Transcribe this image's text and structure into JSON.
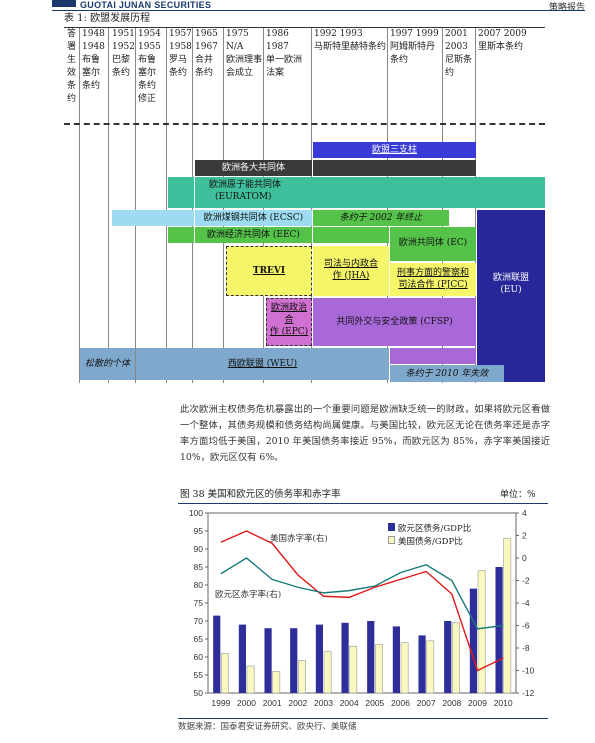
{
  "header": {
    "brand": "GUOTAI JUNAN SECURITIES",
    "report_type": "策略报告"
  },
  "table1": {
    "title": "表 1:  欧盟发展历程",
    "columns": [
      {
        "years": "答署生效条约",
        "events": ""
      },
      {
        "years": "1948 1948",
        "events": "布鲁塞尔条约"
      },
      {
        "years": "1951 1952",
        "events": "巴黎条约"
      },
      {
        "years": "1954 1955",
        "events": "布鲁塞尔条约修正"
      },
      {
        "years": "1957 1958",
        "events": "罗马条约"
      },
      {
        "years": "1965 1967",
        "events": "合并条约"
      },
      {
        "years": "1975 N/A",
        "events": "欧洲理事会成立"
      },
      {
        "years": "1986 1987",
        "events": "单一欧洲法案"
      },
      {
        "years": "1992 1993",
        "events": "马斯特里赫特条约"
      },
      {
        "years": "1997 1999",
        "events": "阿姆斯特丹条约"
      },
      {
        "years": "2001 2003",
        "events": "尼斯条约"
      },
      {
        "years": "2007 2009",
        "events": "里斯本条约"
      }
    ],
    "blocks": {
      "three_pillars": "欧盟三支柱",
      "ec_communities": "欧洲各大共同体",
      "euratom_1": "欧洲原子能共同体",
      "euratom_2": "(EURATOM)",
      "ecsc": "欧洲煤钢共同体 (ECSC)",
      "ecsc_expired": "条约于 2002 年终止",
      "eec": "欧洲经济共同体 (EEC)",
      "ec": "欧洲共同体 (EC)",
      "trevi": "TREVI",
      "jha_1": "司法与内政合",
      "jha_2": "作 (JHA)",
      "pjcc_1": "刑事方面的警察和",
      "pjcc_2": "司法合作 (PJCC)",
      "eu_1": "欧洲联盟",
      "eu_2": "(EU)",
      "epc_1": "欧洲政治",
      "epc_2": "合",
      "epc_3": "作 (EPC)",
      "cfsp": "共同外交与安全政策 (CFSP)",
      "brussels_treaty": "松散的个体",
      "weu": "西欧联盟 (WEU)",
      "weu_expired": "条约于 2010 年失效"
    },
    "colors": {
      "blue_pillar": "#3a3ad8",
      "dark": "#3a3a3a",
      "teal": "#3fbf9c",
      "cyan": "#9ddcf0",
      "green": "#55c24a",
      "yellow": "#f5f56a",
      "magenta": "#d070d0",
      "purple": "#a868d8",
      "navy": "#27279a",
      "steel": "#7fa9cc"
    }
  },
  "paragraph": "此次欧洲主权债务危机暴露出的一个重要问题是欧洲缺乏统一的财政，如果将欧元区看做一个整体，其债务规模和债务结构尚属健康。与美国比较，欧元区无论在债务率还是赤字率方面均低于美国，2010 年美国债务率接近 95%，而欧元区为 85%，赤字率美国接近 10%，欧元区仅有 6%。",
  "figure": {
    "title": "图 38  美国和欧元区的债务率和赤字率",
    "unit": "单位：%",
    "source": "数据来源：国泰君安证券研究、欧央行、美联储"
  },
  "chart_data": {
    "type": "bar",
    "categories": [
      "1999",
      "2000",
      "2001",
      "2002",
      "2003",
      "2004",
      "2005",
      "2006",
      "2007",
      "2008",
      "2009",
      "2010"
    ],
    "ylim_left": [
      50,
      100
    ],
    "yticks_left": [
      50,
      55,
      60,
      65,
      70,
      75,
      80,
      85,
      90,
      95,
      100
    ],
    "ylim_right": [
      -12,
      4
    ],
    "yticks_right": [
      -12,
      -10,
      -8,
      -6,
      -4,
      -2,
      0,
      2,
      4
    ],
    "series": [
      {
        "name": "欧元区债务/GDP比",
        "type": "bar",
        "axis": "left",
        "color": "#2e2e9a",
        "values": [
          71.5,
          69,
          68,
          68,
          69,
          69.5,
          70,
          68.5,
          66,
          70,
          79,
          85
        ]
      },
      {
        "name": "美国债务/GDP比",
        "type": "bar",
        "axis": "left",
        "color": "#f8f8c0",
        "values": [
          61,
          57.5,
          56,
          59,
          61.5,
          63,
          63.5,
          64,
          64.5,
          69.5,
          84,
          93
        ]
      },
      {
        "name": "美国赤字率(右)",
        "type": "line",
        "axis": "right",
        "color": "#e01818",
        "values": [
          1.4,
          2.4,
          1.3,
          -1.5,
          -3.4,
          -3.5,
          -2.6,
          -1.9,
          -1.2,
          -3.2,
          -10,
          -8.9
        ]
      },
      {
        "name": "欧元区赤字率(右)",
        "type": "line",
        "axis": "right",
        "color": "#1a7a7a",
        "values": [
          -1.4,
          0.0,
          -1.9,
          -2.6,
          -3.1,
          -2.9,
          -2.5,
          -1.3,
          -0.6,
          -2.0,
          -6.3,
          -6.0
        ]
      }
    ],
    "annotations": [
      "美国赤字率(右)",
      "欧元区赤字率(右)"
    ],
    "legend_position": "top-right"
  }
}
